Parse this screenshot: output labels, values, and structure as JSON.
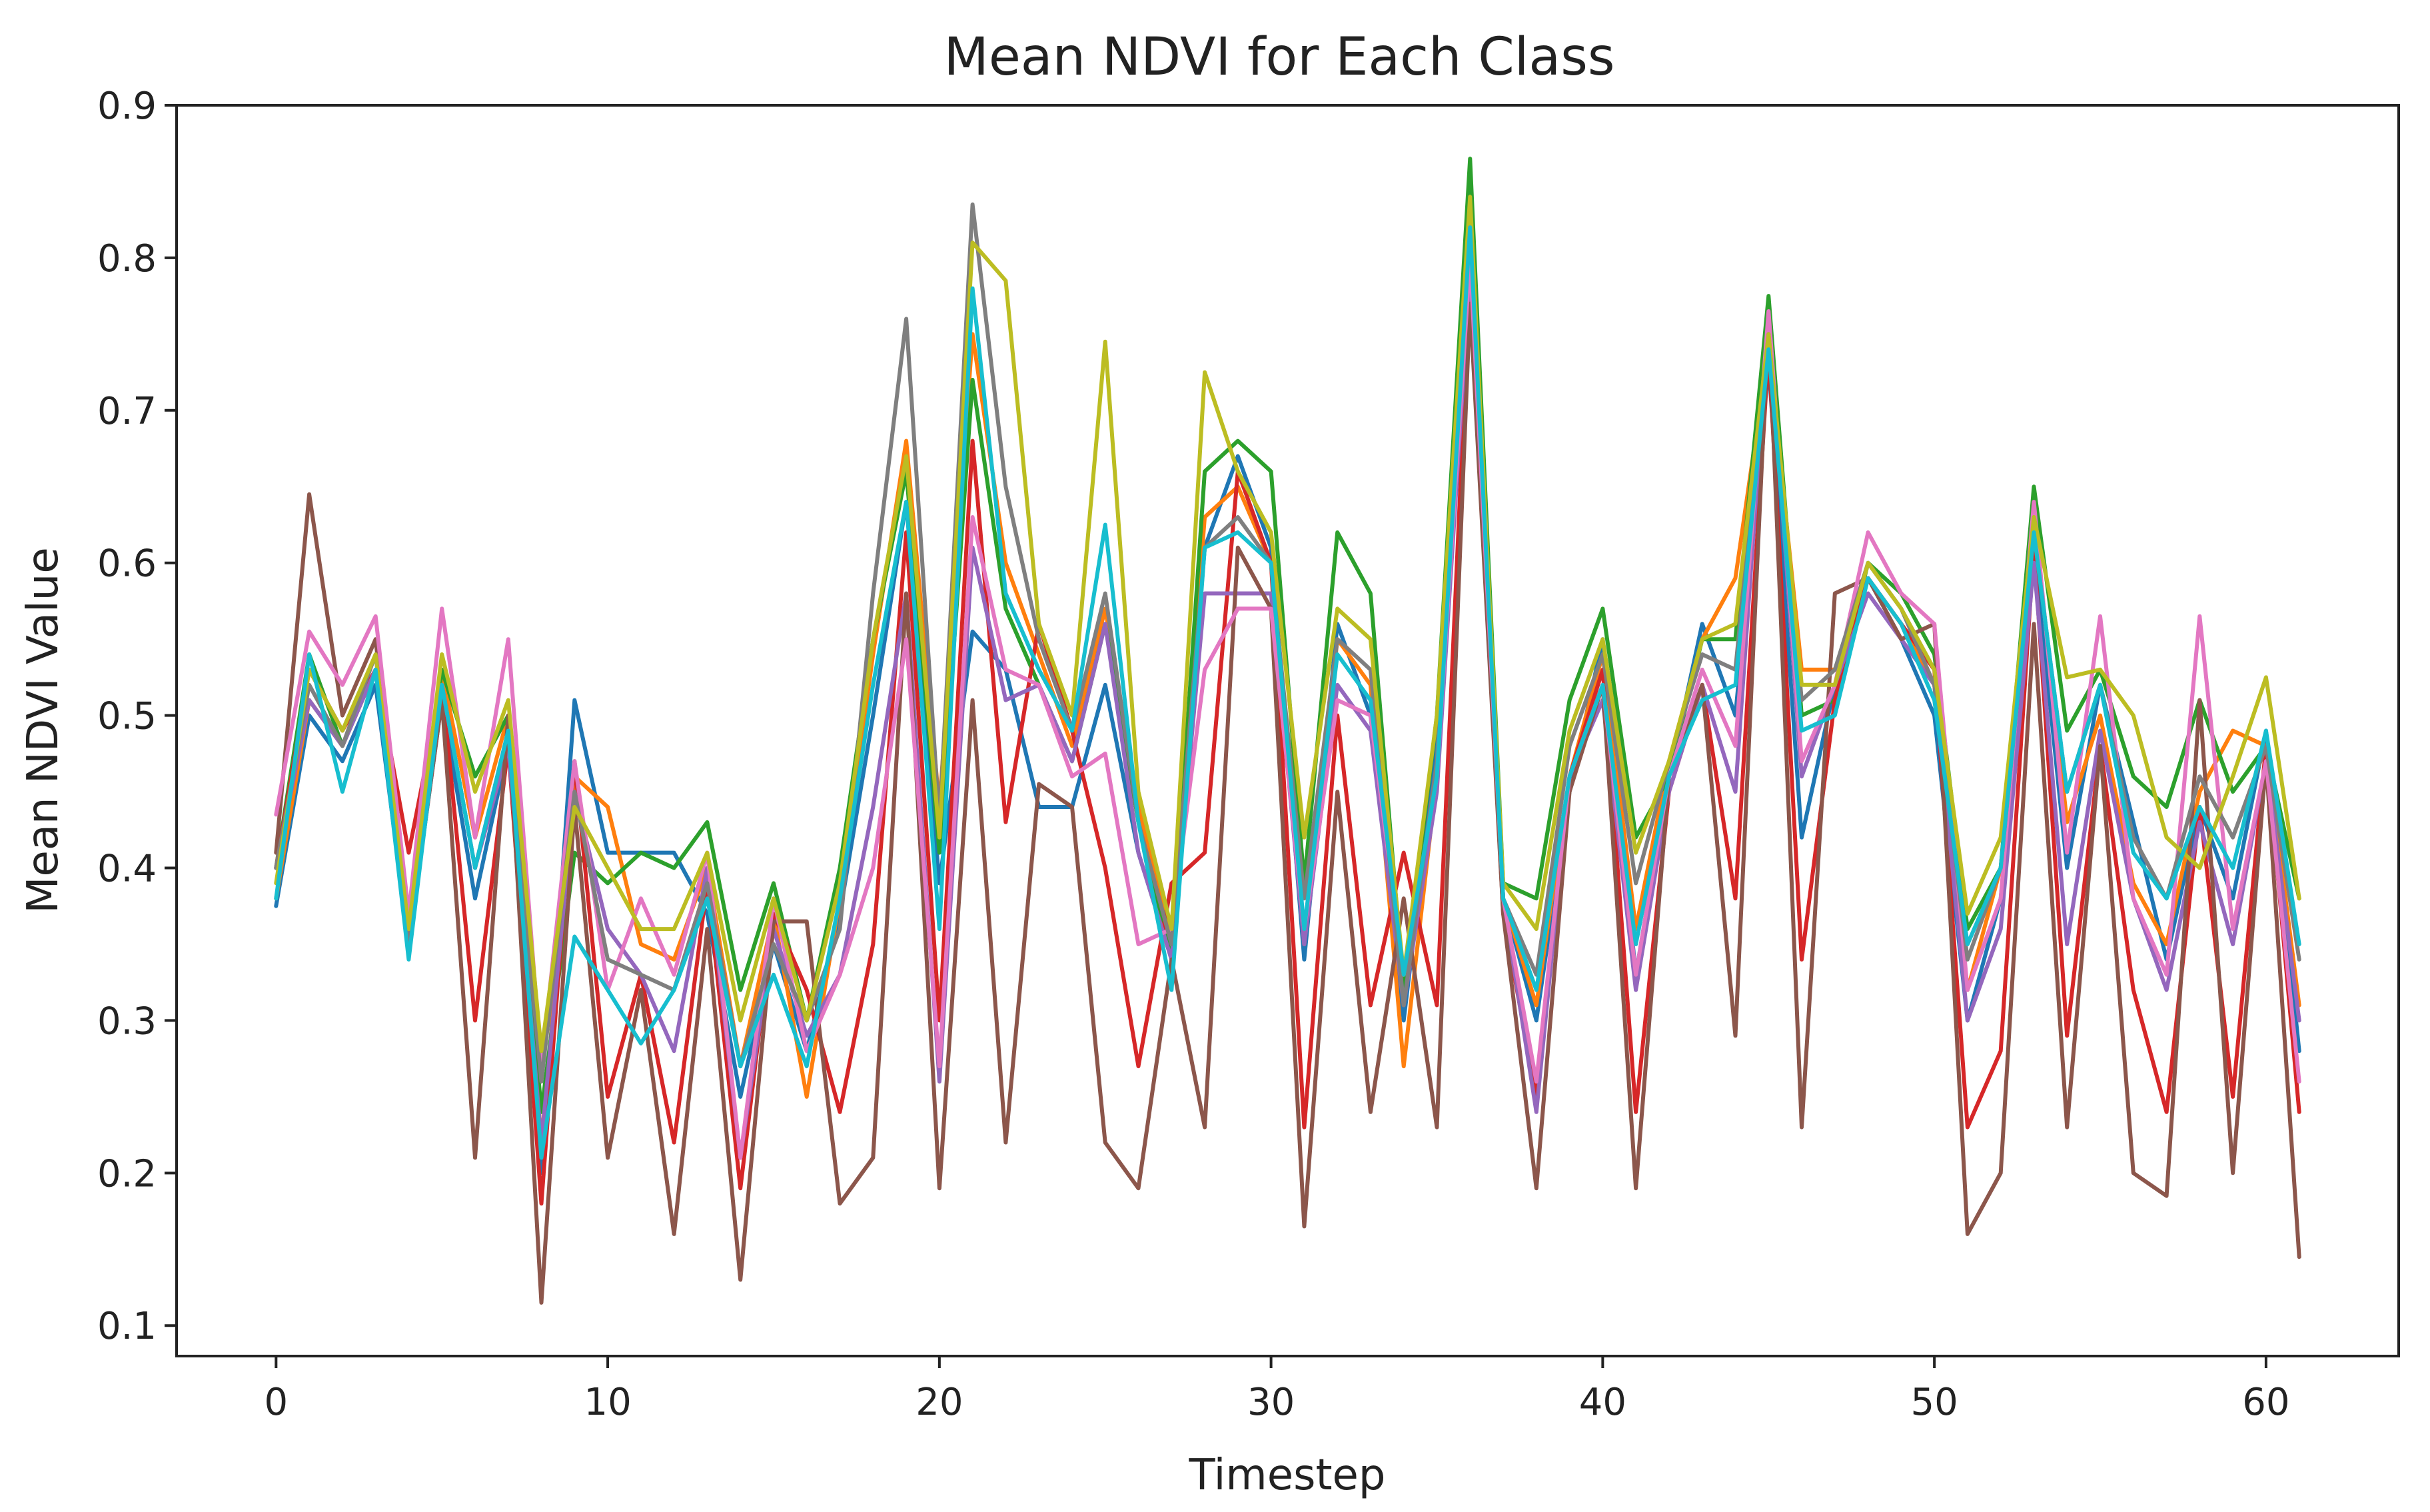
{
  "chart_data": {
    "type": "line",
    "title": "Mean NDVI for Each Class",
    "xlabel": "Timestep",
    "ylabel": "Mean NDVI Value",
    "xlim": [
      -3,
      64
    ],
    "ylim": [
      0.08,
      0.9
    ],
    "xticks": [
      0,
      10,
      20,
      30,
      40,
      50,
      60
    ],
    "yticks": [
      0.1,
      0.2,
      0.3,
      0.4,
      0.5,
      0.6,
      0.7,
      0.8,
      0.9
    ],
    "xtick_labels": [
      "0",
      "10",
      "20",
      "30",
      "40",
      "50",
      "60"
    ],
    "ytick_labels": [
      "0.1",
      "0.2",
      "0.3",
      "0.4",
      "0.5",
      "0.6",
      "0.7",
      "0.8",
      "0.9"
    ],
    "grid": false,
    "legend": "none",
    "x": [
      0,
      1,
      2,
      3,
      4,
      5,
      6,
      7,
      8,
      9,
      10,
      11,
      12,
      13,
      14,
      15,
      16,
      17,
      18,
      19,
      20,
      21,
      22,
      23,
      24,
      25,
      26,
      27,
      28,
      29,
      30,
      31,
      32,
      33,
      34,
      35,
      36,
      37,
      38,
      39,
      40,
      41,
      42,
      43,
      44,
      45,
      46,
      47,
      48,
      49,
      50,
      51,
      52,
      53,
      54,
      55,
      56,
      57,
      58,
      59,
      60,
      61
    ],
    "series": [
      {
        "color": "#1f77b4",
        "values": [
          0.375,
          0.5,
          0.47,
          0.52,
          0.35,
          0.51,
          0.38,
          0.48,
          0.2,
          0.51,
          0.41,
          0.41,
          0.41,
          0.37,
          0.25,
          0.35,
          0.28,
          0.37,
          0.5,
          0.64,
          0.39,
          0.555,
          0.53,
          0.44,
          0.44,
          0.52,
          0.41,
          0.34,
          0.61,
          0.67,
          0.61,
          0.34,
          0.56,
          0.5,
          0.3,
          0.48,
          0.81,
          0.38,
          0.3,
          0.45,
          0.55,
          0.33,
          0.46,
          0.56,
          0.5,
          0.73,
          0.42,
          0.52,
          0.59,
          0.55,
          0.5,
          0.3,
          0.38,
          0.61,
          0.4,
          0.52,
          0.43,
          0.34,
          0.44,
          0.38,
          0.49,
          0.28
        ]
      },
      {
        "color": "#ff7f0e",
        "values": [
          0.38,
          0.51,
          0.48,
          0.53,
          0.36,
          0.53,
          0.42,
          0.5,
          0.22,
          0.46,
          0.44,
          0.35,
          0.34,
          0.4,
          0.27,
          0.37,
          0.25,
          0.38,
          0.54,
          0.68,
          0.44,
          0.75,
          0.6,
          0.54,
          0.48,
          0.57,
          0.44,
          0.35,
          0.63,
          0.65,
          0.6,
          0.35,
          0.55,
          0.52,
          0.27,
          0.46,
          0.8,
          0.38,
          0.31,
          0.46,
          0.54,
          0.36,
          0.47,
          0.55,
          0.59,
          0.74,
          0.53,
          0.53,
          0.59,
          0.56,
          0.52,
          0.32,
          0.4,
          0.63,
          0.43,
          0.5,
          0.39,
          0.35,
          0.45,
          0.49,
          0.48,
          0.31
        ]
      },
      {
        "color": "#2ca02c",
        "values": [
          0.4,
          0.54,
          0.48,
          0.53,
          0.36,
          0.53,
          0.46,
          0.5,
          0.24,
          0.41,
          0.39,
          0.41,
          0.4,
          0.43,
          0.32,
          0.39,
          0.3,
          0.4,
          0.55,
          0.66,
          0.41,
          0.72,
          0.57,
          0.52,
          0.47,
          0.56,
          0.43,
          0.34,
          0.66,
          0.68,
          0.66,
          0.39,
          0.62,
          0.58,
          0.32,
          0.5,
          0.865,
          0.39,
          0.38,
          0.51,
          0.57,
          0.42,
          0.46,
          0.55,
          0.55,
          0.775,
          0.5,
          0.51,
          0.6,
          0.58,
          0.54,
          0.36,
          0.4,
          0.65,
          0.49,
          0.53,
          0.46,
          0.44,
          0.51,
          0.45,
          0.48,
          0.38
        ]
      },
      {
        "color": "#d62728",
        "values": [
          0.4,
          0.53,
          0.49,
          0.53,
          0.41,
          0.52,
          0.3,
          0.48,
          0.18,
          0.47,
          0.25,
          0.33,
          0.22,
          0.39,
          0.19,
          0.37,
          0.32,
          0.24,
          0.35,
          0.62,
          0.3,
          0.68,
          0.43,
          0.56,
          0.49,
          0.4,
          0.27,
          0.39,
          0.41,
          0.66,
          0.6,
          0.23,
          0.5,
          0.31,
          0.41,
          0.31,
          0.79,
          0.37,
          0.25,
          0.46,
          0.53,
          0.24,
          0.45,
          0.52,
          0.38,
          0.74,
          0.34,
          0.51,
          0.59,
          0.56,
          0.53,
          0.23,
          0.28,
          0.61,
          0.29,
          0.48,
          0.32,
          0.24,
          0.44,
          0.25,
          0.48,
          0.24
        ]
      },
      {
        "color": "#9467bd",
        "values": [
          0.4,
          0.51,
          0.48,
          0.53,
          0.35,
          0.52,
          0.4,
          0.48,
          0.22,
          0.45,
          0.36,
          0.33,
          0.28,
          0.4,
          0.21,
          0.36,
          0.29,
          0.33,
          0.44,
          0.58,
          0.26,
          0.61,
          0.51,
          0.52,
          0.47,
          0.56,
          0.41,
          0.34,
          0.58,
          0.58,
          0.58,
          0.35,
          0.52,
          0.49,
          0.31,
          0.45,
          0.79,
          0.38,
          0.24,
          0.46,
          0.51,
          0.32,
          0.45,
          0.52,
          0.45,
          0.76,
          0.46,
          0.52,
          0.58,
          0.55,
          0.52,
          0.3,
          0.36,
          0.6,
          0.35,
          0.49,
          0.38,
          0.32,
          0.43,
          0.35,
          0.47,
          0.3
        ]
      },
      {
        "color": "#8c564b",
        "values": [
          0.41,
          0.645,
          0.5,
          0.55,
          0.35,
          0.51,
          0.21,
          0.5,
          0.115,
          0.44,
          0.21,
          0.32,
          0.16,
          0.36,
          0.13,
          0.365,
          0.365,
          0.18,
          0.21,
          0.58,
          0.19,
          0.51,
          0.22,
          0.455,
          0.44,
          0.22,
          0.19,
          0.34,
          0.23,
          0.61,
          0.57,
          0.165,
          0.45,
          0.24,
          0.38,
          0.23,
          0.77,
          0.37,
          0.19,
          0.45,
          0.52,
          0.19,
          0.46,
          0.52,
          0.29,
          0.76,
          0.23,
          0.58,
          0.59,
          0.55,
          0.56,
          0.16,
          0.2,
          0.56,
          0.23,
          0.48,
          0.2,
          0.185,
          0.51,
          0.2,
          0.47,
          0.145
        ]
      },
      {
        "color": "#e377c2",
        "values": [
          0.435,
          0.555,
          0.52,
          0.565,
          0.37,
          0.57,
          0.42,
          0.55,
          0.27,
          0.47,
          0.32,
          0.38,
          0.33,
          0.41,
          0.21,
          0.38,
          0.28,
          0.33,
          0.4,
          0.55,
          0.27,
          0.63,
          0.53,
          0.52,
          0.46,
          0.475,
          0.35,
          0.36,
          0.53,
          0.57,
          0.57,
          0.36,
          0.51,
          0.5,
          0.33,
          0.46,
          0.8,
          0.38,
          0.26,
          0.46,
          0.52,
          0.33,
          0.46,
          0.53,
          0.48,
          0.765,
          0.47,
          0.52,
          0.62,
          0.58,
          0.56,
          0.32,
          0.38,
          0.64,
          0.41,
          0.565,
          0.38,
          0.33,
          0.565,
          0.36,
          0.47,
          0.26
        ]
      },
      {
        "color": "#7f7f7f",
        "values": [
          0.4,
          0.52,
          0.48,
          0.54,
          0.35,
          0.52,
          0.4,
          0.49,
          0.26,
          0.45,
          0.34,
          0.33,
          0.32,
          0.39,
          0.27,
          0.35,
          0.3,
          0.36,
          0.58,
          0.76,
          0.43,
          0.835,
          0.65,
          0.55,
          0.49,
          0.58,
          0.43,
          0.35,
          0.61,
          0.63,
          0.6,
          0.38,
          0.55,
          0.53,
          0.31,
          0.47,
          0.83,
          0.38,
          0.33,
          0.48,
          0.54,
          0.39,
          0.47,
          0.54,
          0.53,
          0.75,
          0.51,
          0.53,
          0.6,
          0.57,
          0.52,
          0.34,
          0.4,
          0.62,
          0.45,
          0.52,
          0.42,
          0.38,
          0.46,
          0.42,
          0.48,
          0.34
        ]
      },
      {
        "color": "#bcbd22",
        "values": [
          0.39,
          0.53,
          0.49,
          0.54,
          0.36,
          0.54,
          0.45,
          0.51,
          0.28,
          0.44,
          0.4,
          0.36,
          0.36,
          0.41,
          0.3,
          0.38,
          0.3,
          0.39,
          0.55,
          0.67,
          0.42,
          0.81,
          0.785,
          0.56,
          0.5,
          0.745,
          0.45,
          0.36,
          0.725,
          0.66,
          0.62,
          0.42,
          0.57,
          0.55,
          0.33,
          0.5,
          0.84,
          0.39,
          0.36,
          0.49,
          0.55,
          0.41,
          0.47,
          0.55,
          0.56,
          0.75,
          0.52,
          0.52,
          0.6,
          0.57,
          0.53,
          0.37,
          0.42,
          0.63,
          0.525,
          0.53,
          0.5,
          0.42,
          0.4,
          0.46,
          0.525,
          0.38
        ]
      },
      {
        "color": "#17becf",
        "values": [
          0.38,
          0.54,
          0.45,
          0.53,
          0.34,
          0.52,
          0.4,
          0.49,
          0.21,
          0.355,
          0.32,
          0.285,
          0.32,
          0.38,
          0.27,
          0.33,
          0.27,
          0.38,
          0.52,
          0.64,
          0.36,
          0.78,
          0.58,
          0.53,
          0.49,
          0.625,
          0.43,
          0.32,
          0.61,
          0.62,
          0.6,
          0.36,
          0.54,
          0.51,
          0.33,
          0.46,
          0.82,
          0.38,
          0.32,
          0.46,
          0.52,
          0.35,
          0.46,
          0.51,
          0.52,
          0.74,
          0.49,
          0.5,
          0.59,
          0.56,
          0.51,
          0.35,
          0.4,
          0.62,
          0.45,
          0.52,
          0.41,
          0.38,
          0.44,
          0.4,
          0.49,
          0.35
        ]
      }
    ]
  }
}
